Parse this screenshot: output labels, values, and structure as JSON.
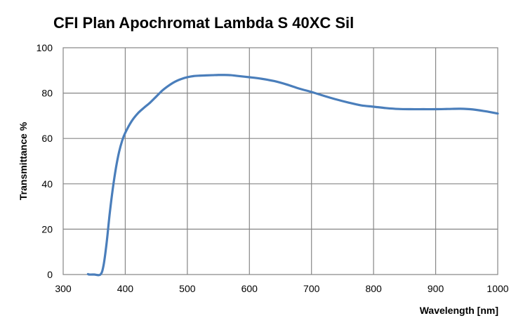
{
  "chart_data": {
    "type": "line",
    "title": "CFI Plan Apochromat  Lambda S 40XC Sil",
    "xlabel": "Wavelength [nm]",
    "ylabel": "Transmittance %",
    "xlim": [
      300,
      1000
    ],
    "ylim": [
      0,
      100
    ],
    "xticks": [
      300,
      400,
      500,
      600,
      700,
      800,
      900,
      1000
    ],
    "yticks": [
      0,
      20,
      40,
      60,
      80,
      100
    ],
    "grid": true,
    "legend": "none",
    "series": [
      {
        "color": "#4a7ebb",
        "x": [
          340,
          342,
          350,
          360,
          365,
          370,
          375,
          380,
          385,
          390,
          395,
          400,
          410,
          420,
          430,
          440,
          450,
          460,
          470,
          480,
          490,
          500,
          510,
          520,
          530,
          540,
          550,
          560,
          570,
          580,
          600,
          620,
          640,
          660,
          680,
          700,
          720,
          740,
          760,
          780,
          800,
          820,
          840,
          860,
          880,
          900,
          920,
          940,
          960,
          980,
          1000
        ],
        "y": [
          0.2,
          0,
          0,
          0,
          4,
          14,
          27,
          38,
          47,
          54,
          59,
          62.5,
          67.5,
          71,
          73.5,
          75.8,
          78.5,
          81.2,
          83.3,
          85,
          86.2,
          87,
          87.5,
          87.7,
          87.8,
          87.9,
          88,
          88,
          87.9,
          87.6,
          87,
          86.3,
          85.3,
          83.8,
          82,
          80.5,
          78.8,
          77.2,
          75.8,
          74.6,
          74,
          73.4,
          73,
          72.9,
          72.9,
          72.9,
          73,
          73.1,
          72.8,
          72,
          71
        ]
      }
    ]
  }
}
